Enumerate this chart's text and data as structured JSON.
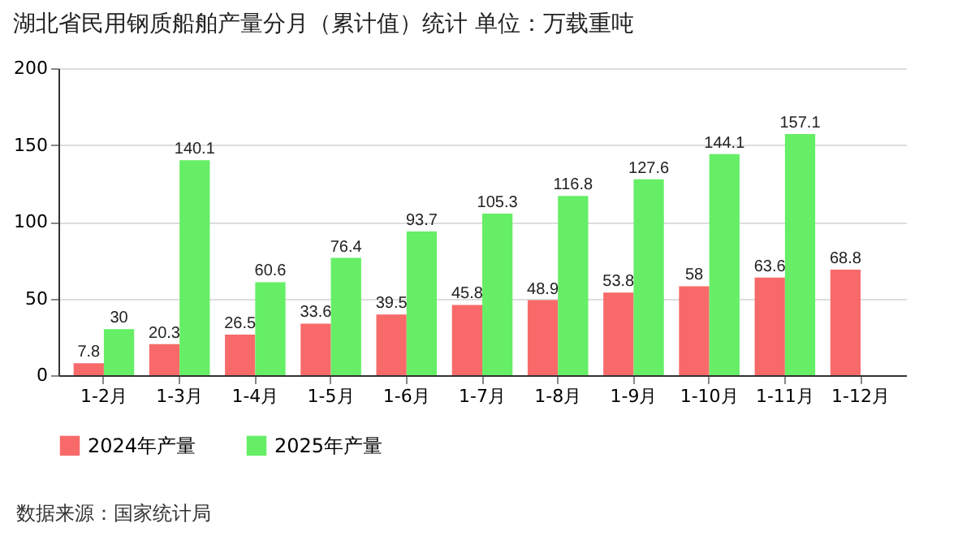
{
  "chart_data": {
    "type": "bar",
    "title": "湖北省民用钢质船舶产量分月（累计值）统计  单位：万载重吨",
    "categories": [
      "1-2月",
      "1-3月",
      "1-4月",
      "1-5月",
      "1-6月",
      "1-7月",
      "1-8月",
      "1-9月",
      "1-10月",
      "1-11月",
      "1-12月"
    ],
    "series": [
      {
        "name": "2024年产量",
        "color": "#f86a6a",
        "values": [
          7.8,
          20.3,
          26.5,
          33.6,
          39.5,
          45.8,
          48.9,
          53.8,
          58,
          63.6,
          68.8
        ]
      },
      {
        "name": "2025年产量",
        "color": "#66ee66",
        "values": [
          30,
          140.1,
          60.6,
          76.4,
          93.7,
          105.3,
          116.8,
          127.6,
          144.1,
          157.1,
          null
        ]
      }
    ],
    "ylim": [
      0,
      200
    ],
    "yticks": [
      0,
      50,
      100,
      150,
      200
    ],
    "grid": "y",
    "legend": "bottom",
    "data_labels": true,
    "annotations": [
      "数据来源：国家统计局"
    ]
  }
}
